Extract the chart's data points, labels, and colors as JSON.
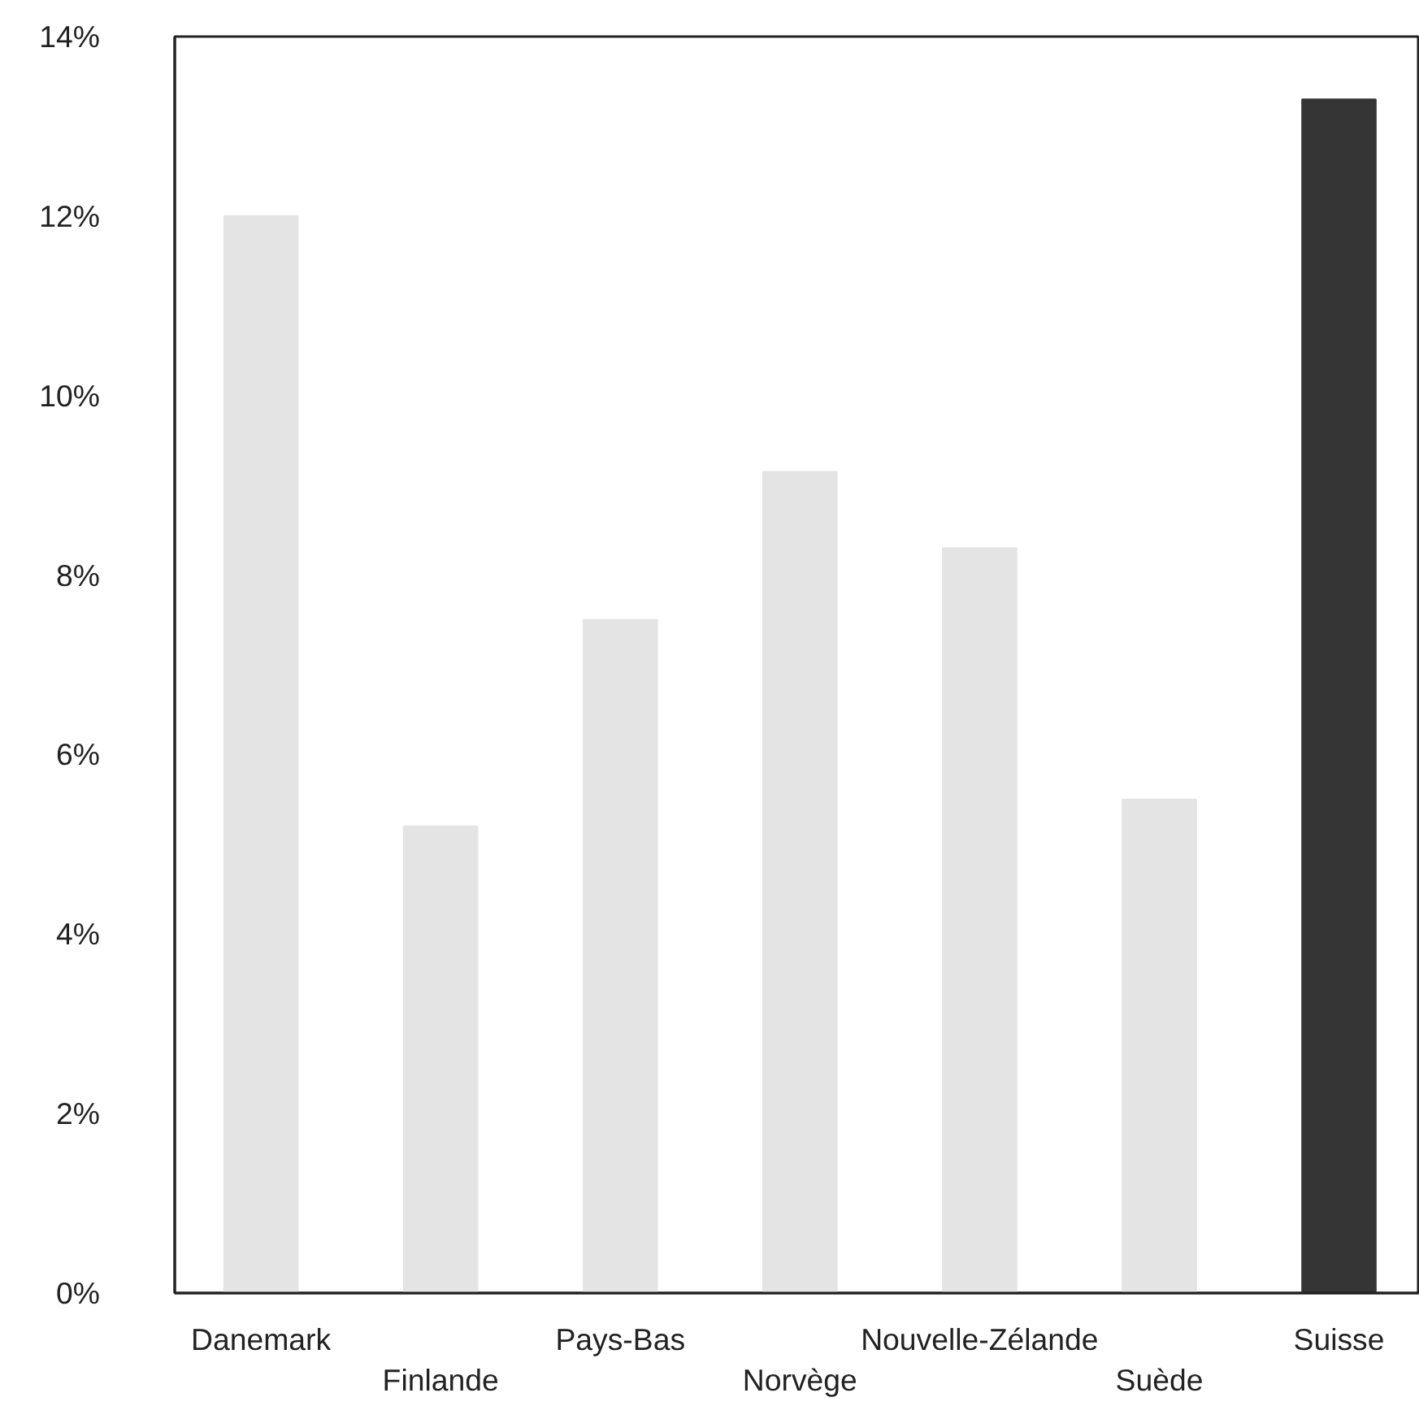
{
  "chart_data": {
    "type": "bar",
    "categories": [
      "Danemark",
      "Finlande",
      "Pays-Bas",
      "Norvège",
      "Nouvelle-Zélande",
      "Suède",
      "Suisse"
    ],
    "values": [
      12.0,
      5.2,
      7.5,
      9.15,
      8.3,
      5.5,
      13.3
    ],
    "colors": [
      "#e4e4e4",
      "#e4e4e4",
      "#e4e4e4",
      "#e4e4e4",
      "#e4e4e4",
      "#e4e4e4",
      "#353535"
    ],
    "ylim": [
      0,
      14
    ],
    "yticks": [
      {
        "value": 0,
        "label": "0%"
      },
      {
        "value": 2,
        "label": "2%"
      },
      {
        "value": 4,
        "label": "4%"
      },
      {
        "value": 6,
        "label": "6%"
      },
      {
        "value": 8,
        "label": "8%"
      },
      {
        "value": 10,
        "label": "10%"
      },
      {
        "value": 12,
        "label": "12%"
      },
      {
        "value": 14,
        "label": "14%"
      }
    ],
    "grid": false
  }
}
